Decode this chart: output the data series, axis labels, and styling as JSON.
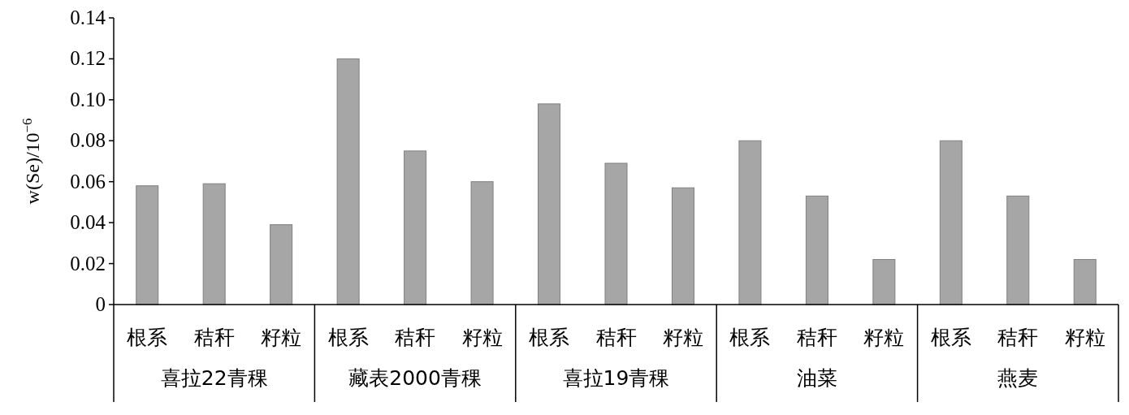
{
  "chart_data": {
    "type": "bar",
    "ylabel": "w(Se)/10$^{−6}$",
    "categories": [
      "根系",
      "秸秆",
      "籽粒",
      "根系",
      "秸秆",
      "籽粒",
      "根系",
      "秸秆",
      "籽粒",
      "根系",
      "秸秆",
      "籽粒",
      "根系",
      "秸秆",
      "籽粒"
    ],
    "series": [
      {
        "color": "#a6a6a6",
        "values": [
          0.058,
          0.059,
          0.039,
          0.12,
          0.075,
          0.06,
          0.098,
          0.069,
          0.057,
          0.08,
          0.053,
          0.022,
          0.08,
          0.053,
          0.022
        ]
      }
    ],
    "annotations": [
      "喜拉22青稞",
      "藏表2000青稞",
      "喜拉19青稞",
      "油菜",
      "燕麦"
    ],
    "ylim": [
      0,
      0.14
    ],
    "yticks": [
      {
        "value": 0,
        "label": "0"
      },
      {
        "value": 0.02,
        "label": "0.02"
      },
      {
        "value": 0.04,
        "label": "0.04"
      },
      {
        "value": 0.06,
        "label": "0.06"
      },
      {
        "value": 0.08,
        "label": "0.08"
      },
      {
        "value": 0.1,
        "label": "0.10"
      },
      {
        "value": 0.12,
        "label": "0.12"
      },
      {
        "value": 0.14,
        "label": "0.14"
      }
    ]
  }
}
